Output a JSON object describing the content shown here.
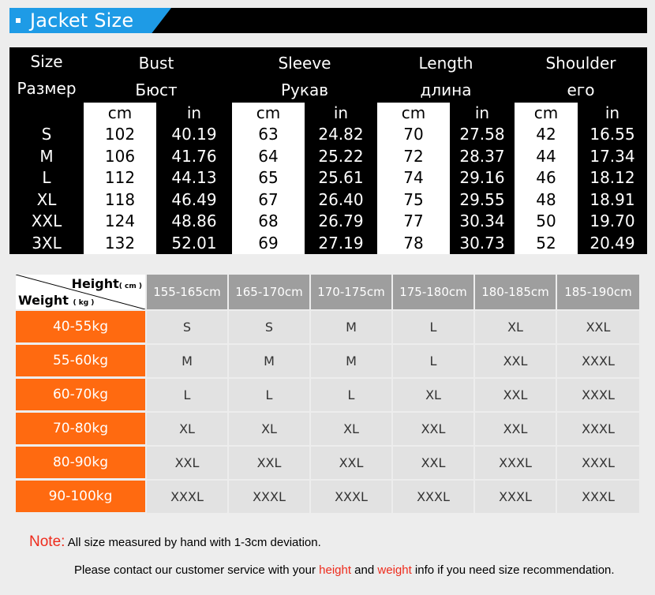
{
  "header": {
    "title": "Jacket Size"
  },
  "size_table": {
    "size_label_en": "Size",
    "size_label_ru": "Размер",
    "groups": [
      {
        "en": "Bust",
        "ru": "Бюст",
        "units": [
          "cm",
          "in"
        ]
      },
      {
        "en": "Sleeve",
        "ru": "Рукав",
        "units": [
          "cm",
          "in"
        ]
      },
      {
        "en": "Length",
        "ru": "длина",
        "units": [
          "cm",
          "in"
        ]
      },
      {
        "en": "Shoulder",
        "ru": "его",
        "units": [
          "cm",
          "in"
        ]
      }
    ],
    "rows": [
      {
        "size": "S",
        "values": [
          "102",
          "40.19",
          "63",
          "24.82",
          "70",
          "27.58",
          "42",
          "16.55"
        ]
      },
      {
        "size": "M",
        "values": [
          "106",
          "41.76",
          "64",
          "25.22",
          "72",
          "28.37",
          "44",
          "17.34"
        ]
      },
      {
        "size": "L",
        "values": [
          "112",
          "44.13",
          "65",
          "25.61",
          "74",
          "29.16",
          "46",
          "18.12"
        ]
      },
      {
        "size": "XL",
        "values": [
          "118",
          "46.49",
          "67",
          "26.40",
          "75",
          "29.55",
          "48",
          "18.91"
        ]
      },
      {
        "size": "XXL",
        "values": [
          "124",
          "48.86",
          "68",
          "26.79",
          "77",
          "30.34",
          "50",
          "19.70"
        ]
      },
      {
        "size": "3XL",
        "values": [
          "132",
          "52.01",
          "69",
          "27.19",
          "78",
          "30.73",
          "52",
          "20.49"
        ]
      }
    ]
  },
  "weight_chart": {
    "height_label": "Height",
    "height_unit": "( cm )",
    "weight_label": "Weight",
    "weight_unit": "( kg )",
    "height_ranges": [
      "155-165cm",
      "165-170cm",
      "170-175cm",
      "175-180cm",
      "180-185cm",
      "185-190cm"
    ],
    "rows": [
      {
        "weight": "40-55kg",
        "sizes": [
          "S",
          "S",
          "M",
          "L",
          "XL",
          "XXL"
        ]
      },
      {
        "weight": "55-60kg",
        "sizes": [
          "M",
          "M",
          "M",
          "L",
          "XXL",
          "XXXL"
        ]
      },
      {
        "weight": "60-70kg",
        "sizes": [
          "L",
          "L",
          "L",
          "XL",
          "XXL",
          "XXXL"
        ]
      },
      {
        "weight": "70-80kg",
        "sizes": [
          "XL",
          "XL",
          "XL",
          "XXL",
          "XXL",
          "XXXL"
        ]
      },
      {
        "weight": "80-90kg",
        "sizes": [
          "XXL",
          "XXL",
          "XXL",
          "XXL",
          "XXXL",
          "XXXL"
        ]
      },
      {
        "weight": "90-100kg",
        "sizes": [
          "XXXL",
          "XXXL",
          "XXXL",
          "XXXL",
          "XXXL",
          "XXXL"
        ]
      }
    ],
    "colors": {
      "row_label_bg": "#ff6a10",
      "header_bg": "#9e9e9e",
      "cell_bg": "#e2e2e2"
    }
  },
  "notes": {
    "note_label": "Note:",
    "note_text": " All size measured by hand with 1-3cm deviation.",
    "contact_prefix": "Please contact our customer service with your ",
    "contact_height": "height",
    "contact_and": " and ",
    "contact_weight": "weight",
    "contact_suffix": " info if you need size recommendation."
  },
  "colors": {
    "accent": "#1e9be6",
    "note_red": "#ee2b1c"
  }
}
